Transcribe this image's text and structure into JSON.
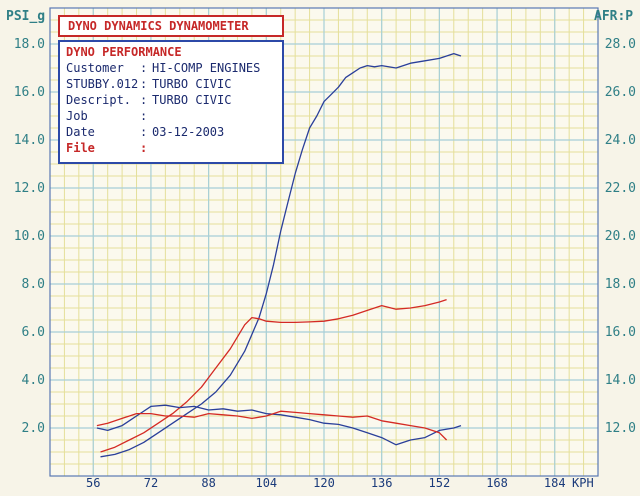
{
  "header": {
    "title": "DYNO DYNAMICS DYNAMOMETER"
  },
  "info": {
    "heading": "DYNO PERFORMANCE",
    "rows": [
      {
        "key": "Customer",
        "value": "HI-COMP ENGINES"
      },
      {
        "key": "STUBBY.012",
        "value": "TURBO CIVIC"
      },
      {
        "key": "Descript.",
        "value": "TURBO CIVIC"
      },
      {
        "key": "Job",
        "value": ""
      },
      {
        "key": "Date",
        "value": "03-12-2003"
      },
      {
        "key": "File",
        "value": ""
      }
    ]
  },
  "chart_data": {
    "type": "line",
    "ylabel_left": "PSI_g",
    "ylabel_right": "AFR:P",
    "xlabel": "KPH",
    "x_ticks": [
      56,
      72,
      88,
      104,
      120,
      136,
      152,
      168,
      184
    ],
    "y_left_ticks": [
      2.0,
      4.0,
      6.0,
      8.0,
      10.0,
      12.0,
      14.0,
      16.0,
      18.0
    ],
    "y_right_ticks": [
      12.0,
      14.0,
      16.0,
      18.0,
      20.0,
      22.0,
      24.0,
      26.0,
      28.0
    ],
    "xlim": [
      44,
      196
    ],
    "ylim_left": [
      0,
      19.5
    ],
    "ylim_right": [
      10.0,
      29.5
    ],
    "grid": true,
    "colors": {
      "blue_series": "#2a3f9a",
      "red_series": "#d42a24",
      "grid_minor": "#e4df9a",
      "grid_major": "#a7cfd8",
      "axis_text": "#2f7f86"
    },
    "series": [
      {
        "axis": "left",
        "color": "#2a3f9a",
        "x": [
          58,
          62,
          66,
          70,
          74,
          78,
          82,
          86,
          90,
          94,
          98,
          102,
          104,
          106,
          108,
          110,
          112,
          114,
          116,
          118,
          120,
          122,
          124,
          126,
          128,
          130,
          132,
          134,
          136,
          140,
          144,
          148,
          152,
          156,
          158
        ],
        "y": [
          0.8,
          0.9,
          1.1,
          1.4,
          1.8,
          2.2,
          2.6,
          3.0,
          3.5,
          4.2,
          5.2,
          6.6,
          7.6,
          8.8,
          10.2,
          11.4,
          12.6,
          13.6,
          14.5,
          15.0,
          15.6,
          15.9,
          16.2,
          16.6,
          16.8,
          17.0,
          17.1,
          17.05,
          17.1,
          17.0,
          17.2,
          17.3,
          17.4,
          17.6,
          17.5
        ]
      },
      {
        "axis": "left",
        "color": "#d42a24",
        "x": [
          58,
          62,
          66,
          70,
          74,
          78,
          82,
          86,
          90,
          94,
          98,
          100,
          102,
          104,
          108,
          112,
          116,
          120,
          124,
          128,
          132,
          136,
          140,
          144,
          148,
          152,
          154
        ],
        "y": [
          1.0,
          1.2,
          1.5,
          1.8,
          2.2,
          2.6,
          3.1,
          3.7,
          4.5,
          5.3,
          6.3,
          6.6,
          6.55,
          6.45,
          6.4,
          6.4,
          6.42,
          6.45,
          6.55,
          6.7,
          6.9,
          7.1,
          6.95,
          7.0,
          7.1,
          7.25,
          7.35
        ]
      },
      {
        "axis": "right",
        "color": "#2a3f9a",
        "x": [
          57,
          60,
          64,
          68,
          72,
          76,
          80,
          84,
          88,
          92,
          96,
          100,
          104,
          108,
          112,
          116,
          120,
          124,
          128,
          132,
          136,
          140,
          144,
          148,
          152,
          156,
          158
        ],
        "y": [
          12.0,
          11.9,
          12.1,
          12.5,
          12.9,
          12.95,
          12.85,
          12.9,
          12.75,
          12.8,
          12.7,
          12.75,
          12.6,
          12.55,
          12.45,
          12.35,
          12.2,
          12.15,
          12.0,
          11.8,
          11.6,
          11.3,
          11.5,
          11.6,
          11.9,
          12.0,
          12.1
        ]
      },
      {
        "axis": "right",
        "color": "#d42a24",
        "x": [
          57,
          60,
          64,
          68,
          72,
          76,
          80,
          84,
          88,
          92,
          96,
          100,
          104,
          108,
          112,
          116,
          120,
          124,
          128,
          132,
          136,
          140,
          144,
          148,
          152,
          154
        ],
        "y": [
          12.1,
          12.2,
          12.4,
          12.6,
          12.6,
          12.5,
          12.5,
          12.45,
          12.6,
          12.55,
          12.5,
          12.4,
          12.5,
          12.7,
          12.65,
          12.6,
          12.55,
          12.5,
          12.45,
          12.5,
          12.3,
          12.2,
          12.1,
          12.0,
          11.8,
          11.5
        ]
      }
    ]
  }
}
